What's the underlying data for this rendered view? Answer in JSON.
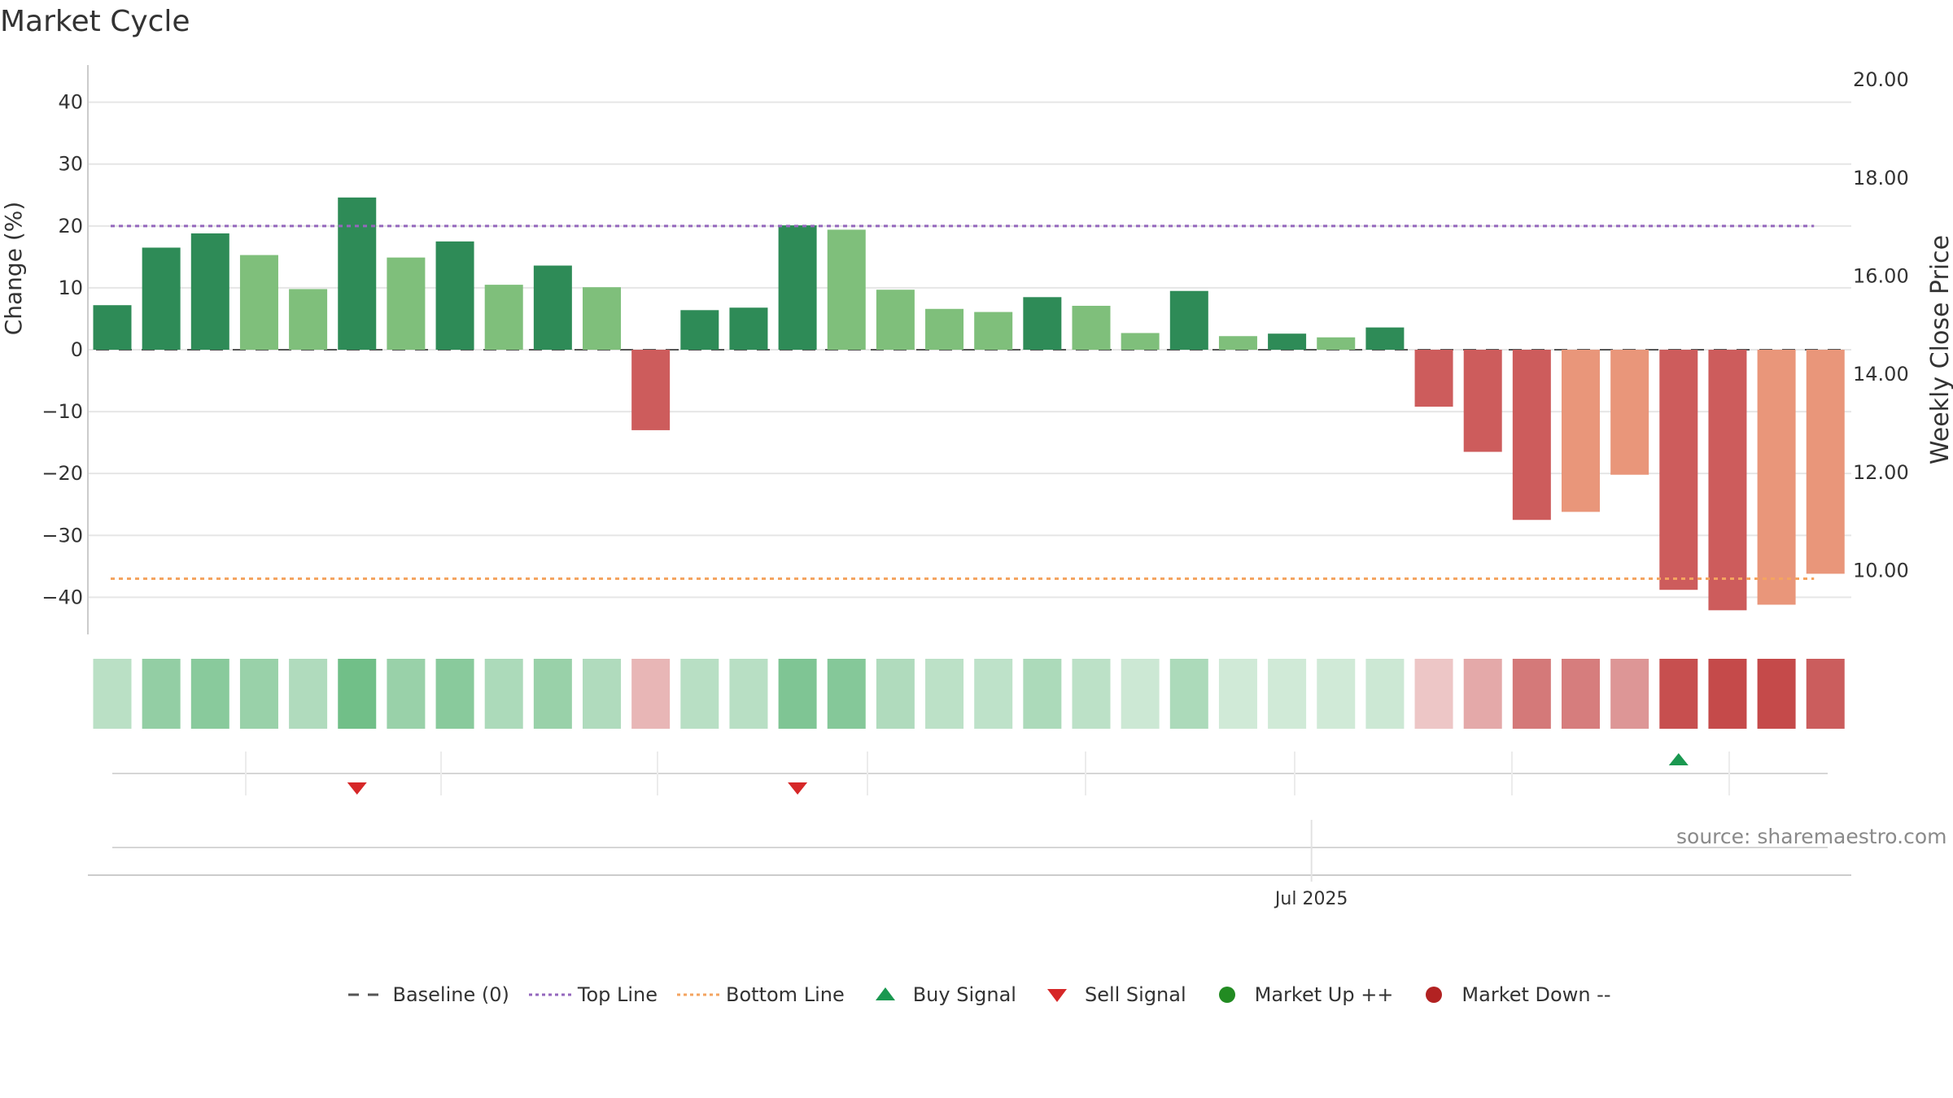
{
  "title": "Market Cycle",
  "source": "source: sharemaestro.com",
  "colors": {
    "up_strong": "#2e8b57",
    "up_weak": "#7fbf7b",
    "down_strong": "#cd5c5c",
    "down_weak": "#e9967a",
    "top_line": "#9467bd",
    "bottom_line": "#f4a460",
    "buy": "#1a9850",
    "sell": "#d62728",
    "market_up": "#228b22",
    "market_down": "#b22222",
    "baseline": "#555555"
  },
  "chart_data": {
    "type": "bar",
    "left_axis": {
      "label": "Change (%)",
      "range": [
        -46,
        46
      ],
      "ticks": [
        40,
        30,
        20,
        10,
        0,
        -10,
        -20,
        -30,
        -40
      ]
    },
    "right_axis": {
      "label": "Weekly Close Price",
      "range": [
        8.7,
        20.3
      ],
      "ticks": [
        "20.00",
        "18.00",
        "16.00",
        "14.00",
        "12.00",
        "10.00"
      ]
    },
    "x_axis": {
      "ticks": [
        "Jul 2025"
      ],
      "tick_index": 24.5
    },
    "values": [
      7.2,
      16.5,
      18.8,
      15.3,
      9.8,
      24.6,
      14.9,
      17.5,
      10.5,
      13.6,
      10.1,
      -13.0,
      6.4,
      6.8,
      20.1,
      19.4,
      9.7,
      6.6,
      6.1,
      8.5,
      7.1,
      2.7,
      9.5,
      2.2,
      2.6,
      2.0,
      3.6,
      -9.2,
      -16.5,
      -27.5,
      -26.2,
      -20.2,
      -38.8,
      -42.1,
      -41.2,
      -36.2
    ],
    "strength": [
      "strong",
      "strong",
      "strong",
      "weak",
      "weak",
      "strong",
      "weak",
      "strong",
      "weak",
      "strong",
      "weak",
      "strong",
      "strong",
      "strong",
      "strong",
      "weak",
      "weak",
      "weak",
      "weak",
      "strong",
      "weak",
      "weak",
      "strong",
      "weak",
      "strong",
      "weak",
      "strong",
      "strong",
      "strong",
      "strong",
      "weak",
      "weak",
      "strong",
      "strong",
      "weak",
      "weak"
    ],
    "heat_intensity": [
      0.35,
      0.55,
      0.6,
      0.52,
      0.4,
      0.72,
      0.52,
      0.6,
      0.42,
      0.52,
      0.4,
      0.38,
      0.36,
      0.36,
      0.65,
      0.62,
      0.4,
      0.34,
      0.33,
      0.42,
      0.34,
      0.26,
      0.42,
      0.24,
      0.24,
      0.24,
      0.26,
      0.3,
      0.45,
      0.7,
      0.68,
      0.55,
      0.92,
      0.95,
      0.95,
      0.85
    ],
    "top_line": 20,
    "bottom_line": -37,
    "baseline": 0,
    "sell_signals": [
      5,
      14
    ],
    "buy_signals": [
      32
    ]
  },
  "legend": [
    {
      "key": "baseline",
      "label": "Baseline (0)"
    },
    {
      "key": "top",
      "label": "Top Line"
    },
    {
      "key": "bottom",
      "label": "Bottom Line"
    },
    {
      "key": "buy",
      "label": "Buy Signal"
    },
    {
      "key": "sell",
      "label": "Sell Signal"
    },
    {
      "key": "up",
      "label": "Market Up ++"
    },
    {
      "key": "down",
      "label": "Market Down --"
    }
  ]
}
